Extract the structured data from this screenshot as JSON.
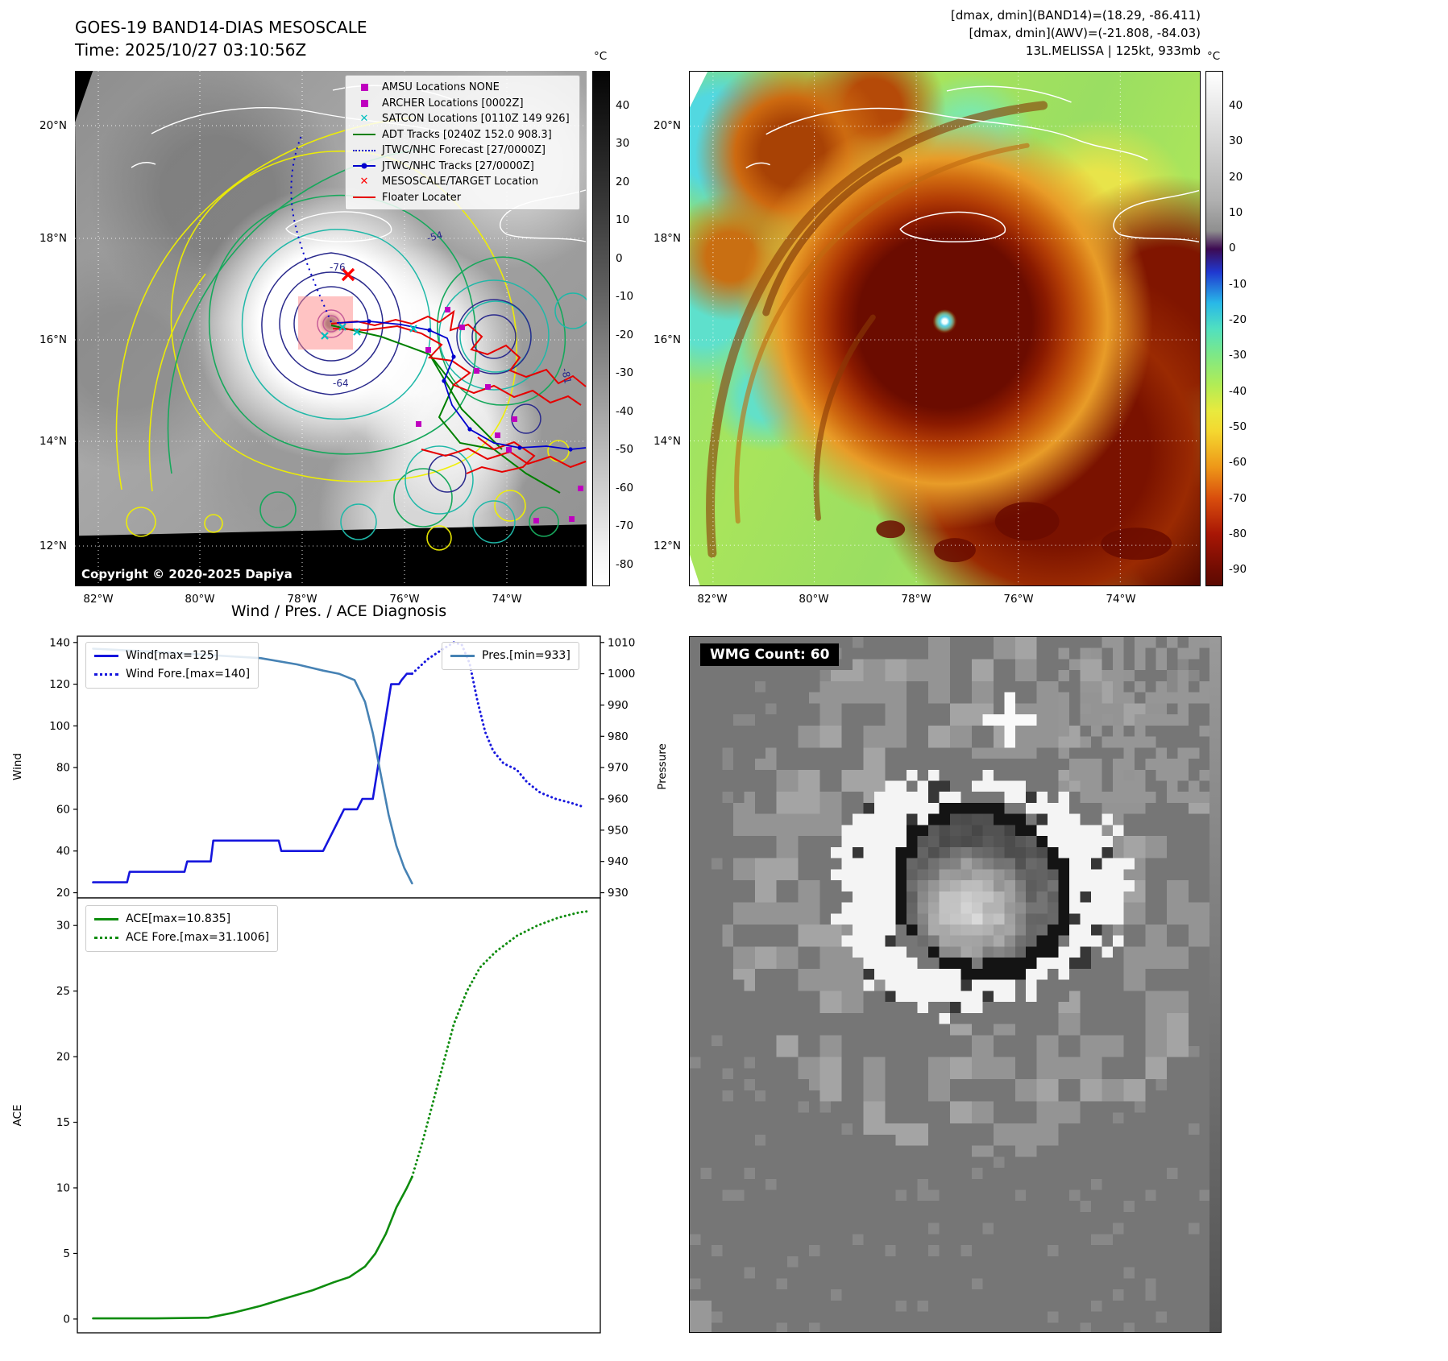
{
  "colors": {
    "magenta_marker": "#bf00bf",
    "teal_marker": "#00bfbf",
    "adt_green": "#008000",
    "jtwc_blue": "#0000cd",
    "target_red": "#ff0000",
    "wind_line": "#1515dd",
    "pressure_line": "#4682b4",
    "ace_line": "#0e8c0e"
  },
  "band14_panel": {
    "title": "GOES-19 BAND14-DIAS MESOSCALE",
    "subtitle": "Time: 2025/10/27 03:10:56Z",
    "copyright": "Copyright © 2020-2025 Dapiya",
    "legend_items": [
      {
        "label": "AMSU Locations NONE",
        "marker": "square",
        "color": "#bf00bf"
      },
      {
        "label": "ARCHER Locations [0002Z]",
        "marker": "square",
        "color": "#bf00bf"
      },
      {
        "label": "SATCON Locations [0110Z 149 926]",
        "marker": "x",
        "color": "#00bfbf"
      },
      {
        "label": "ADT Tracks [0240Z 152.0 908.3]",
        "marker": "line",
        "color": "#008000"
      },
      {
        "label": "JTWC/NHC Forecast [27/0000Z]",
        "marker": "dotted-line",
        "color": "#0000cd"
      },
      {
        "label": "JTWC/NHC Tracks [27/0000Z]",
        "marker": "line-dot",
        "color": "#0000cd"
      },
      {
        "label": "MESOSCALE/TARGET Location",
        "marker": "x",
        "color": "#ff0000"
      },
      {
        "label": "Floater Locater",
        "marker": "line",
        "color": "#ff0000"
      }
    ],
    "lat_ticks": [
      "20°N",
      "18°N",
      "16°N",
      "14°N",
      "12°N"
    ],
    "lon_ticks": [
      "82°W",
      "80°W",
      "78°W",
      "76°W",
      "74°W"
    ],
    "colorbar_unit": "°C",
    "colorbar_ticks": [
      "40",
      "30",
      "20",
      "10",
      "0",
      "-10",
      "-20",
      "-30",
      "-40",
      "-50",
      "-60",
      "-70",
      "-80"
    ],
    "contour_labels": [
      "-76",
      "-54",
      "-64",
      "-81"
    ]
  },
  "awv_panel": {
    "info_line1": "[dmax, dmin](BAND14)=(18.29, -86.411)",
    "info_line2": "[dmax, dmin](AWV)=(-21.808, -84.03)",
    "info_line3": "13L.MELISSA | 125kt, 933mb",
    "lat_ticks": [
      "20°N",
      "18°N",
      "16°N",
      "14°N",
      "12°N"
    ],
    "lon_ticks": [
      "82°W",
      "80°W",
      "78°W",
      "76°W",
      "74°W"
    ],
    "colorbar_unit": "°C",
    "colorbar_ticks": [
      "40",
      "30",
      "20",
      "10",
      "0",
      "-10",
      "-20",
      "-30",
      "-40",
      "-50",
      "-60",
      "-70",
      "-80",
      "-90"
    ]
  },
  "diagnosis": {
    "title": "Wind / Pres. / ACE Diagnosis",
    "legend_wind": "Wind[max=125]",
    "legend_wind_fore": "Wind Fore.[max=140]",
    "legend_pres": "Pres.[min=933]",
    "legend_ace": "ACE[max=10.835]",
    "legend_ace_fore": "ACE Fore.[max=31.1006]"
  },
  "wmg_panel": {
    "count_label": "WMG Count: 60"
  },
  "chart_data": [
    {
      "type": "line",
      "title": "Wind / Pres. / ACE Diagnosis",
      "x_axis": "normalized time 0-1 (no tick labels shown)",
      "ylabel_left": "Wind",
      "ylabel_right": "Pressure",
      "ylim_left": [
        20,
        140
      ],
      "ylim_right": [
        930,
        1010
      ],
      "yticks_left": [
        20,
        40,
        60,
        80,
        100,
        120,
        140
      ],
      "yticks_right": [
        930,
        940,
        950,
        960,
        970,
        980,
        990,
        1000,
        1010
      ],
      "grid": false,
      "legend_position": "upper-left and upper-right",
      "series": [
        {
          "name": "Wind[max=125]",
          "axis": "left",
          "style": "solid",
          "color": "#1515dd",
          "points": [
            [
              0.03,
              25
            ],
            [
              0.095,
              25
            ],
            [
              0.1,
              30
            ],
            [
              0.205,
              30
            ],
            [
              0.21,
              35
            ],
            [
              0.255,
              35
            ],
            [
              0.26,
              45
            ],
            [
              0.385,
              45
            ],
            [
              0.39,
              40
            ],
            [
              0.47,
              40
            ],
            [
              0.51,
              60
            ],
            [
              0.535,
              60
            ],
            [
              0.545,
              65
            ],
            [
              0.565,
              65
            ],
            [
              0.6,
              120
            ],
            [
              0.615,
              120
            ],
            [
              0.62,
              122
            ],
            [
              0.63,
              125
            ],
            [
              0.64,
              125
            ]
          ]
        },
        {
          "name": "Wind Fore.[max=140]",
          "axis": "left",
          "style": "dotted",
          "color": "#1515dd",
          "points": [
            [
              0.64,
              125
            ],
            [
              0.67,
              132
            ],
            [
              0.7,
              137
            ],
            [
              0.72,
              140
            ],
            [
              0.735,
              139
            ],
            [
              0.75,
              130
            ],
            [
              0.765,
              112
            ],
            [
              0.78,
              97
            ],
            [
              0.795,
              88
            ],
            [
              0.815,
              82
            ],
            [
              0.84,
              79
            ],
            [
              0.86,
              73
            ],
            [
              0.885,
              68
            ],
            [
              0.915,
              65
            ],
            [
              0.945,
              63
            ],
            [
              0.97,
              61
            ]
          ]
        },
        {
          "name": "Pres.[min=933]",
          "axis": "right",
          "style": "solid",
          "color": "#4682b4",
          "points": [
            [
              0.03,
              1008
            ],
            [
              0.15,
              1007
            ],
            [
              0.25,
              1006
            ],
            [
              0.35,
              1005
            ],
            [
              0.42,
              1003
            ],
            [
              0.47,
              1001
            ],
            [
              0.5,
              1000
            ],
            [
              0.53,
              998
            ],
            [
              0.55,
              991
            ],
            [
              0.565,
              981
            ],
            [
              0.58,
              968
            ],
            [
              0.595,
              955
            ],
            [
              0.61,
              945
            ],
            [
              0.625,
              938
            ],
            [
              0.64,
              933
            ]
          ]
        }
      ]
    },
    {
      "type": "line",
      "x_axis": "normalized time 0-1 (no tick labels shown)",
      "ylabel_left": "ACE",
      "ylim_left": [
        0,
        31.1
      ],
      "yticks_left": [
        0,
        5,
        10,
        15,
        20,
        25,
        30
      ],
      "grid": false,
      "legend_position": "upper-left",
      "series": [
        {
          "name": "ACE[max=10.835]",
          "style": "solid",
          "color": "#0e8c0e",
          "points": [
            [
              0.03,
              0.05
            ],
            [
              0.15,
              0.05
            ],
            [
              0.25,
              0.1
            ],
            [
              0.3,
              0.5
            ],
            [
              0.35,
              1.0
            ],
            [
              0.4,
              1.6
            ],
            [
              0.45,
              2.2
            ],
            [
              0.49,
              2.8
            ],
            [
              0.52,
              3.2
            ],
            [
              0.55,
              4.0
            ],
            [
              0.57,
              5.0
            ],
            [
              0.59,
              6.5
            ],
            [
              0.61,
              8.5
            ],
            [
              0.63,
              10.0
            ],
            [
              0.64,
              10.835
            ]
          ]
        },
        {
          "name": "ACE Fore.[max=31.1006]",
          "style": "dotted",
          "color": "#0e8c0e",
          "points": [
            [
              0.64,
              10.835
            ],
            [
              0.66,
              13.5
            ],
            [
              0.68,
              16.5
            ],
            [
              0.7,
              19.5
            ],
            [
              0.72,
              22.5
            ],
            [
              0.745,
              25.0
            ],
            [
              0.77,
              26.8
            ],
            [
              0.8,
              28.0
            ],
            [
              0.84,
              29.2
            ],
            [
              0.88,
              30.0
            ],
            [
              0.92,
              30.6
            ],
            [
              0.96,
              31.0
            ],
            [
              0.98,
              31.1
            ]
          ]
        }
      ]
    }
  ]
}
